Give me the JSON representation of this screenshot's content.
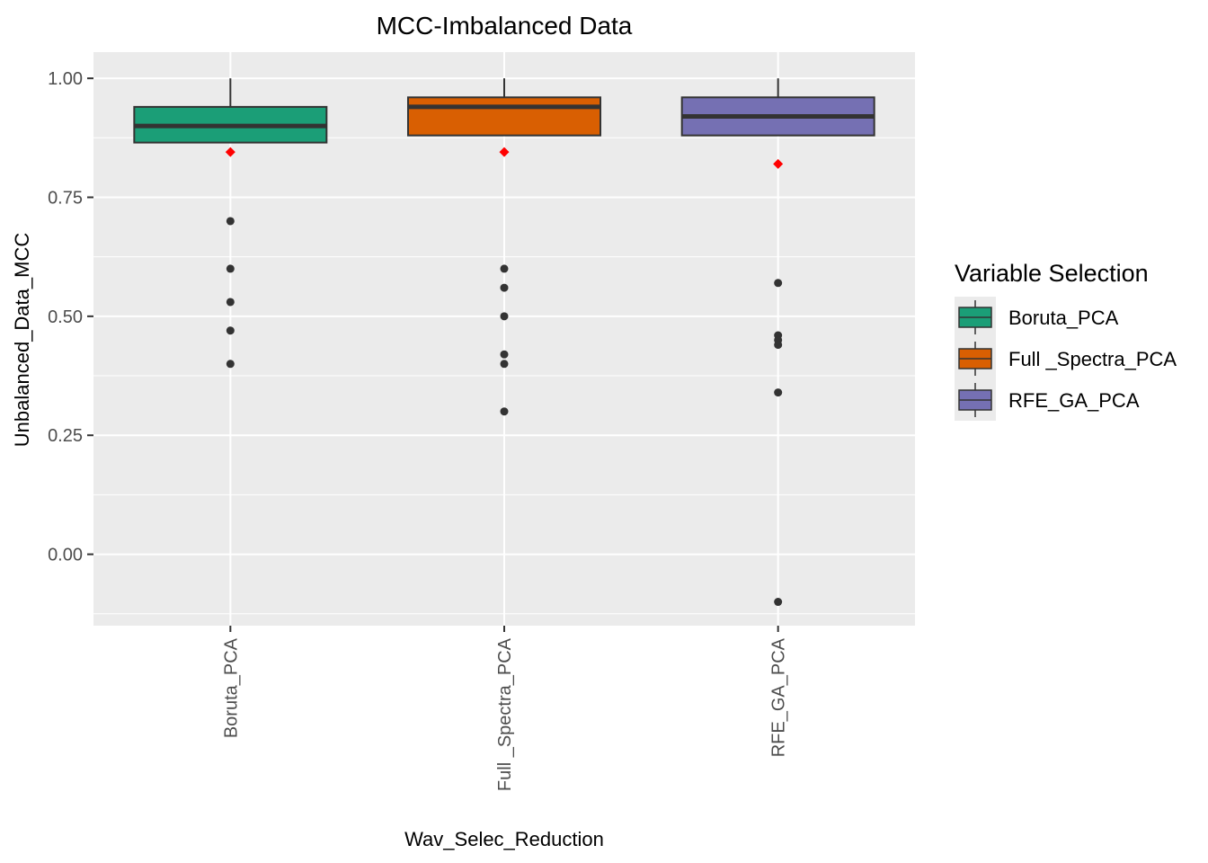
{
  "chart_data": {
    "type": "box",
    "title": "MCC-Imbalanced Data",
    "xlabel": "Wav_Selec_Reduction",
    "ylabel": "Unbalanced_Data_MCC",
    "ylim": [
      -0.15,
      1.055
    ],
    "y_ticks": [
      0.0,
      0.25,
      0.5,
      0.75,
      1.0
    ],
    "y_tick_labels": [
      "0.00",
      "0.25",
      "0.50",
      "0.75",
      "1.00"
    ],
    "categories": [
      "Boruta_PCA",
      "Full _Spectra_PCA",
      "RFE_GA_PCA"
    ],
    "legend": {
      "title": "Variable Selection",
      "position": "right",
      "entries": [
        "Boruta_PCA",
        "Full _Spectra_PCA",
        "RFE_GA_PCA"
      ]
    },
    "colors": {
      "Boruta_PCA": "#1b9e77",
      "Full _Spectra_PCA": "#d95f02",
      "RFE_GA_PCA": "#7570b3",
      "mean_marker": "#ff0000",
      "outlier": "#333333",
      "panel": "#ebebeb",
      "grid": "#ffffff"
    },
    "boxes": [
      {
        "name": "Boruta_PCA",
        "whisker_low": 0.865,
        "q1": 0.865,
        "median": 0.9,
        "q3": 0.94,
        "whisker_high": 1.0,
        "mean": 0.845,
        "outliers": [
          0.7,
          0.6,
          0.53,
          0.47,
          0.4
        ]
      },
      {
        "name": "Full _Spectra_PCA",
        "whisker_low": 0.88,
        "q1": 0.88,
        "median": 0.94,
        "q3": 0.96,
        "whisker_high": 1.0,
        "mean": 0.845,
        "outliers": [
          0.6,
          0.56,
          0.5,
          0.42,
          0.4,
          0.3
        ]
      },
      {
        "name": "RFE_GA_PCA",
        "whisker_low": 0.88,
        "q1": 0.88,
        "median": 0.92,
        "q3": 0.96,
        "whisker_high": 1.0,
        "mean": 0.82,
        "outliers": [
          0.57,
          0.46,
          0.45,
          0.44,
          0.34,
          -0.1
        ]
      }
    ]
  }
}
